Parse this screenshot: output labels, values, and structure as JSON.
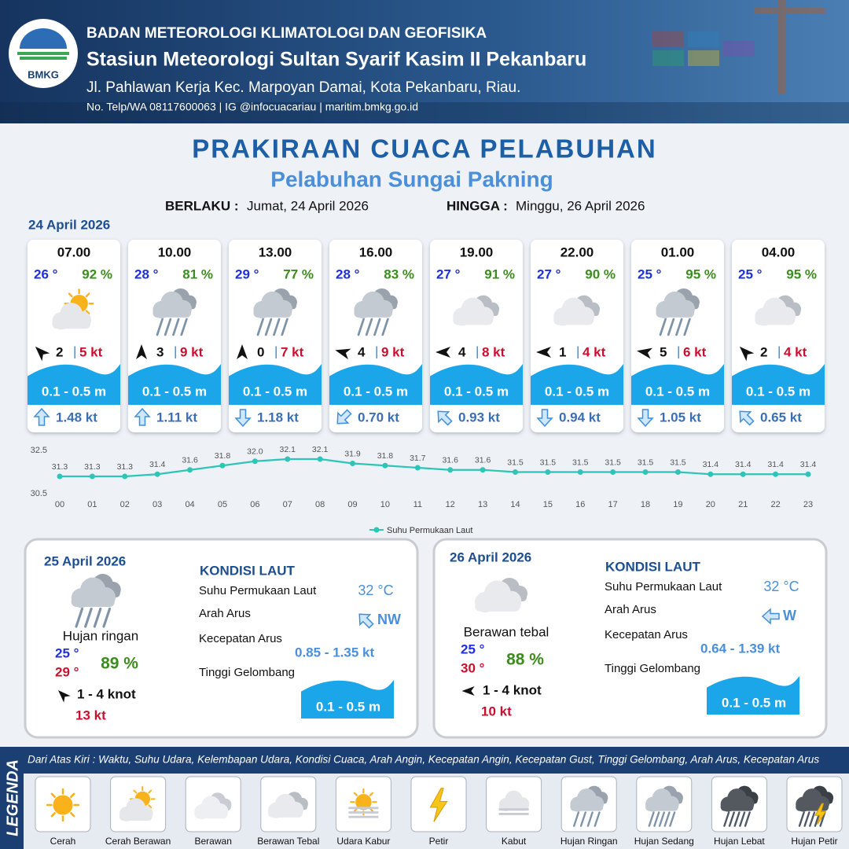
{
  "header": {
    "logo": "BMKG",
    "agency": "BADAN METEOROLOGI KLIMATOLOGI DAN GEOFISIKA",
    "station": "Stasiun Meteorologi Sultan Syarif Kasim II Pekanbaru",
    "address": "Jl. Pahlawan Kerja Kec. Marpoyan Damai, Kota Pekanbaru, Riau.",
    "contact": "No. Telp/WA 08117600063 | IG @infocuacariau | maritim.bmkg.go.id"
  },
  "title": "PRAKIRAAN CUACA PELABUHAN",
  "subtitle": "Pelabuhan Sungai Pakning",
  "validity": {
    "from_label": "BERLAKU :",
    "from": "Jumat, 24 April 2026",
    "to_label": "HINGGA :",
    "to": "Minggu, 26 April 2026"
  },
  "forecast": {
    "date": "24 April 2026",
    "wind_separator": "|",
    "items": [
      {
        "time": "07.00",
        "temp": "26 °",
        "humidity": "92 %",
        "icon": "sun-cloud",
        "wind_deg": -45,
        "wind_speed": "2",
        "gust": "5 kt",
        "wave": "0.1 - 0.5 m",
        "current_deg": 0,
        "current": "1.48 kt"
      },
      {
        "time": "10.00",
        "temp": "28 °",
        "humidity": "81 %",
        "icon": "rain-light",
        "wind_deg": 0,
        "wind_speed": "3",
        "gust": "9 kt",
        "wave": "0.1 - 0.5 m",
        "current_deg": 0,
        "current": "1.11 kt"
      },
      {
        "time": "13.00",
        "temp": "29 °",
        "humidity": "77 %",
        "icon": "rain-light",
        "wind_deg": 0,
        "wind_speed": "0",
        "gust": "7 kt",
        "wave": "0.1 - 0.5 m",
        "current_deg": 180,
        "current": "1.18 kt"
      },
      {
        "time": "16.00",
        "temp": "28 °",
        "humidity": "83 %",
        "icon": "rain-light",
        "wind_deg": -75,
        "wind_speed": "4",
        "gust": "9 kt",
        "wave": "0.1 - 0.5 m",
        "current_deg": 225,
        "current": "0.70 kt"
      },
      {
        "time": "19.00",
        "temp": "27 °",
        "humidity": "91 %",
        "icon": "thick-cloud",
        "wind_deg": -90,
        "wind_speed": "4",
        "gust": "8 kt",
        "wave": "0.1 - 0.5 m",
        "current_deg": -45,
        "current": "0.93 kt"
      },
      {
        "time": "22.00",
        "temp": "27 °",
        "humidity": "90 %",
        "icon": "thick-cloud",
        "wind_deg": -90,
        "wind_speed": "1",
        "gust": "4 kt",
        "wave": "0.1 - 0.5 m",
        "current_deg": 180,
        "current": "0.94 kt"
      },
      {
        "time": "01.00",
        "temp": "25 °",
        "humidity": "95 %",
        "icon": "rain-light",
        "wind_deg": -80,
        "wind_speed": "5",
        "gust": "6 kt",
        "wave": "0.1 - 0.5 m",
        "current_deg": 180,
        "current": "1.05 kt"
      },
      {
        "time": "04.00",
        "temp": "25 °",
        "humidity": "95 %",
        "icon": "thick-cloud",
        "wind_deg": -45,
        "wind_speed": "2",
        "gust": "4 kt",
        "wave": "0.1 - 0.5 m",
        "current_deg": -45,
        "current": "0.65 kt"
      }
    ]
  },
  "chart_data": {
    "type": "line",
    "categories": [
      "00",
      "01",
      "02",
      "03",
      "04",
      "05",
      "06",
      "07",
      "08",
      "09",
      "10",
      "11",
      "12",
      "13",
      "14",
      "15",
      "16",
      "17",
      "18",
      "19",
      "20",
      "21",
      "22",
      "23"
    ],
    "series": [
      {
        "name": "Suhu Permukaan Laut",
        "color": "#2ec4b6",
        "values": [
          31.3,
          31.3,
          31.3,
          31.4,
          31.6,
          31.8,
          32.0,
          32.1,
          32.1,
          31.9,
          31.8,
          31.7,
          31.6,
          31.6,
          31.5,
          31.5,
          31.5,
          31.5,
          31.5,
          31.5,
          31.4,
          31.4,
          31.4,
          31.4
        ],
        "value_labels": [
          "31.3",
          "31.3",
          "31.3",
          "31.4",
          "31.6",
          "31.8",
          "32.0",
          "32.1",
          "32.1",
          "31.9",
          "31.8",
          "31.7",
          "31.6",
          "31.6",
          "31.5",
          "31.5",
          "31.5",
          "31.5",
          "31.5",
          "31.5",
          "31.4",
          "31.4",
          "31.4",
          "31.4"
        ]
      }
    ],
    "ylim": [
      30.5,
      32.5
    ],
    "yticks": [
      30.5,
      32.5
    ],
    "grid": false,
    "legend": "bottom"
  },
  "outlook": [
    {
      "date": "25 April 2026",
      "icon": "rain-light",
      "weather": "Hujan ringan",
      "temp_min": "25 °",
      "temp_max": "29 °",
      "humidity": "89 %",
      "wind_deg": -45,
      "wind": "1  - 4 knot",
      "gust": "13 kt",
      "sea_title": "KONDISI LAUT",
      "sst_label": "Suhu Permukaan Laut",
      "sst": "32 °C",
      "dir_label": "Arah Arus",
      "current_deg": -45,
      "dir": "NW",
      "speed_label": "Kecepatan Arus",
      "speed": "0.85  - 1.35 kt",
      "wave_label": "Tinggi Gelombang",
      "wave": "0.1 - 0.5 m"
    },
    {
      "date": "26 April 2026",
      "icon": "thick-cloud",
      "weather": "Berawan tebal",
      "temp_min": "25 °",
      "temp_max": "30 °",
      "humidity": "88 %",
      "wind_deg": -90,
      "wind": "1 - 4 knot",
      "gust": "10 kt",
      "sea_title": "KONDISI LAUT",
      "sst_label": "Suhu Permukaan Laut",
      "sst": "32 °C",
      "dir_label": "Arah Arus",
      "current_deg": -90,
      "dir": "W",
      "speed_label": "Kecepatan Arus",
      "speed": "0.64 - 1.39 kt",
      "wave_label": "Tinggi Gelombang",
      "wave": "0.1 - 0.5 m"
    }
  ],
  "legend": {
    "title": "LEGENDA",
    "description": "Dari Atas Kiri : Waktu, Suhu Udara, Kelembapan Udara, Kondisi Cuaca, Arah Angin, Kecepatan Angin, Kecepatan Gust, Tinggi Gelombang, Arah Arus, Kecepatan Arus",
    "items": [
      {
        "icon": "sun",
        "label": "Cerah"
      },
      {
        "icon": "sun-cloud",
        "label": "Cerah Berawan"
      },
      {
        "icon": "cloud",
        "label": "Berawan"
      },
      {
        "icon": "thick-cloud",
        "label": "Berawan Tebal"
      },
      {
        "icon": "haze",
        "label": "Udara Kabur"
      },
      {
        "icon": "lightning",
        "label": "Petir"
      },
      {
        "icon": "fog",
        "label": "Kabut"
      },
      {
        "icon": "rain-light",
        "label": "Hujan Ringan"
      },
      {
        "icon": "rain-medium",
        "label": "Hujan Sedang"
      },
      {
        "icon": "rain-heavy",
        "label": "Hujan Lebat"
      },
      {
        "icon": "rain-thunder",
        "label": "Hujan Petir"
      }
    ]
  }
}
